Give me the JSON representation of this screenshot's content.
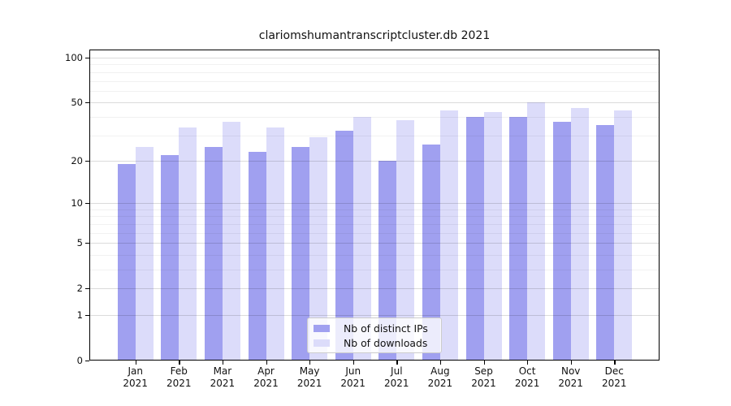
{
  "chart_data": {
    "type": "bar",
    "title": "clariomshumantranscriptcluster.db 2021",
    "xlabel": "",
    "ylabel": "",
    "year": "2021",
    "categories": [
      "Jan",
      "Feb",
      "Mar",
      "Apr",
      "May",
      "Jun",
      "Jul",
      "Aug",
      "Sep",
      "Oct",
      "Nov",
      "Dec"
    ],
    "series": [
      {
        "name": "Nb of distinct IPs",
        "color": "#a0a0f0",
        "values": [
          19,
          22,
          25,
          23,
          25,
          32,
          20,
          26,
          40,
          40,
          37,
          35
        ]
      },
      {
        "name": "Nb of downloads",
        "color": "#dcdcfa",
        "values": [
          25,
          34,
          37,
          34,
          29,
          40,
          38,
          44,
          43,
          50,
          46,
          44
        ]
      }
    ],
    "y_axis": {
      "scale": "log1p",
      "tick_labels": [
        "0",
        "1",
        "2",
        "5",
        "10",
        "20",
        "50",
        "100"
      ],
      "major_ticks": [
        0,
        1,
        2,
        5,
        10,
        20,
        50,
        100
      ],
      "minor_gridlines": [
        3,
        4,
        6,
        7,
        8,
        9,
        30,
        40,
        60,
        70,
        80,
        90
      ],
      "ylim": [
        0,
        113
      ]
    },
    "legend_position": "bottom-center",
    "grid": "horizontal"
  }
}
